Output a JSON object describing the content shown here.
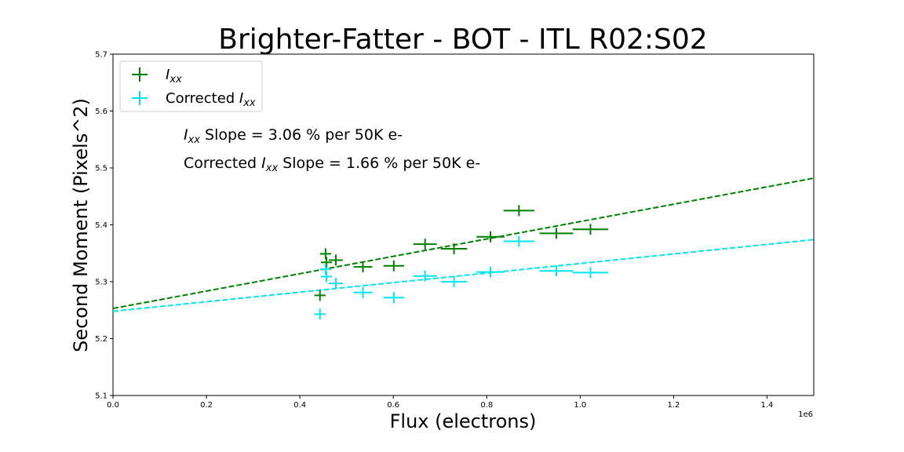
{
  "chart_data": {
    "type": "scatter",
    "title": "Brighter-Fatter - BOT - ITL R02:S02",
    "xlabel": "Flux (electrons)",
    "ylabel": "Second Moment (Pixels^2)",
    "x_offset_label": "1e6",
    "xlim": [
      0,
      1.5
    ],
    "ylim": [
      5.1,
      5.7
    ],
    "x_ticks": [
      "0.0",
      "0.2",
      "0.4",
      "0.6",
      "0.8",
      "1.0",
      "1.2",
      "1.4"
    ],
    "y_ticks": [
      "5.1",
      "5.2",
      "5.3",
      "5.4",
      "5.5",
      "5.6",
      "5.7"
    ],
    "legend_position": "upper left",
    "series": [
      {
        "name_main": "I",
        "name_sub": "xx",
        "color": "#008000",
        "marker": "+",
        "points": [
          {
            "x": 0.443,
            "y": 5.276,
            "xerr": 0.012
          },
          {
            "x": 0.455,
            "y": 5.349,
            "xerr": 0.012
          },
          {
            "x": 0.457,
            "y": 5.334,
            "xerr": 0.012
          },
          {
            "x": 0.477,
            "y": 5.338,
            "xerr": 0.015
          },
          {
            "x": 0.535,
            "y": 5.326,
            "xerr": 0.02
          },
          {
            "x": 0.601,
            "y": 5.328,
            "xerr": 0.022
          },
          {
            "x": 0.668,
            "y": 5.366,
            "xerr": 0.025
          },
          {
            "x": 0.73,
            "y": 5.358,
            "xerr": 0.028
          },
          {
            "x": 0.808,
            "y": 5.379,
            "xerr": 0.03
          },
          {
            "x": 0.869,
            "y": 5.425,
            "xerr": 0.033
          },
          {
            "x": 0.949,
            "y": 5.385,
            "xerr": 0.036
          },
          {
            "x": 1.022,
            "y": 5.392,
            "xerr": 0.038
          }
        ],
        "fit_line": {
          "x": [
            0,
            1.5
          ],
          "y": [
            5.253,
            5.482
          ],
          "style": "dashed"
        }
      },
      {
        "name_prefix": "Corrected ",
        "name_main": "I",
        "name_sub": "xx",
        "color": "#00e5ee",
        "marker": "+",
        "points": [
          {
            "x": 0.443,
            "y": 5.243,
            "xerr": 0.012
          },
          {
            "x": 0.455,
            "y": 5.322,
            "xerr": 0.012
          },
          {
            "x": 0.457,
            "y": 5.309,
            "xerr": 0.012
          },
          {
            "x": 0.477,
            "y": 5.297,
            "xerr": 0.015
          },
          {
            "x": 0.535,
            "y": 5.281,
            "xerr": 0.02
          },
          {
            "x": 0.601,
            "y": 5.272,
            "xerr": 0.022
          },
          {
            "x": 0.668,
            "y": 5.31,
            "xerr": 0.025
          },
          {
            "x": 0.73,
            "y": 5.3,
            "xerr": 0.028
          },
          {
            "x": 0.808,
            "y": 5.317,
            "xerr": 0.03
          },
          {
            "x": 0.869,
            "y": 5.371,
            "xerr": 0.033
          },
          {
            "x": 0.949,
            "y": 5.319,
            "xerr": 0.036
          },
          {
            "x": 1.022,
            "y": 5.316,
            "xerr": 0.038
          }
        ],
        "fit_line": {
          "x": [
            0,
            1.5
          ],
          "y": [
            5.248,
            5.374
          ],
          "style": "dashed"
        }
      }
    ],
    "annotations": [
      {
        "prefix": "",
        "main": "I",
        "sub": "xx",
        "rest": " Slope = 3.06 % per 50K e-"
      },
      {
        "prefix": "Corrected ",
        "main": "I",
        "sub": "xx",
        "rest": " Slope = 1.66 % per 50K e-"
      }
    ]
  }
}
